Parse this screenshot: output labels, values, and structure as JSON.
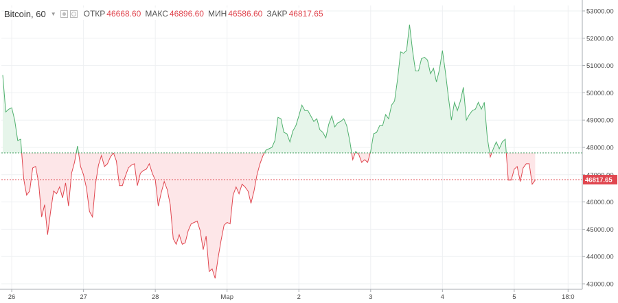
{
  "legend": {
    "symbol": "Bitcoin, 60",
    "open_label": "ОТКР",
    "open_value": "46668.60",
    "high_label": "МАКС",
    "high_value": "46896.60",
    "low_label": "МИН",
    "low_value": "46586.60",
    "close_label": "ЗАКР",
    "close_value": "46817.65"
  },
  "colors": {
    "up_line": "#4fb06d",
    "up_fill": "#e6f5ea",
    "down_line": "#e0464f",
    "down_fill": "#fde6e8",
    "baseline": "#3a9a5a",
    "last_price": "#e0464f"
  },
  "icons": [
    "caret-down-icon",
    "eye-icon",
    "gear-icon"
  ],
  "last_price_tag": "46817.65",
  "chart_data": {
    "type": "area",
    "title": "",
    "baseline_value": 47800,
    "last_value": 46817.65,
    "ylim": [
      42800,
      53200
    ],
    "y_ticks": [
      43000,
      44000,
      45000,
      46000,
      47000,
      48000,
      49000,
      50000,
      51000,
      52000,
      53000
    ],
    "y_tick_labels": [
      "43000.00",
      "44000.00",
      "45000.00",
      "46000.00",
      "47000.00",
      "48000.00",
      "49000.00",
      "50000.00",
      "51000.00",
      "52000.00",
      "53000.00"
    ],
    "x_ticks": [
      {
        "label": "26",
        "index": 3
      },
      {
        "label": "27",
        "index": 27
      },
      {
        "label": "28",
        "index": 51
      },
      {
        "label": "Мар",
        "index": 75
      },
      {
        "label": "2",
        "index": 99
      },
      {
        "label": "3",
        "index": 123
      },
      {
        "label": "4",
        "index": 147
      },
      {
        "label": "5",
        "index": 171
      },
      {
        "label": "18:0",
        "index": 189
      }
    ],
    "x_range": [
      0,
      191
    ],
    "series": [
      {
        "values": [
          50650,
          49300,
          49400,
          49450,
          49000,
          48250,
          48300,
          46850,
          46250,
          46400,
          47250,
          47300,
          46700,
          45450,
          45900,
          44800,
          45650,
          46400,
          46300,
          46550,
          46150,
          46700,
          45850,
          47050,
          47450,
          48050,
          47300,
          47000,
          46500,
          45650,
          45450,
          46650,
          47350,
          47700,
          47300,
          47400,
          47650,
          47800,
          47500,
          46600,
          46600,
          46950,
          47250,
          47350,
          47400,
          46600,
          47050,
          47150,
          47200,
          47400,
          47050,
          46800,
          45850,
          46350,
          46750,
          46450,
          45900,
          44650,
          44450,
          44800,
          44450,
          44500,
          44950,
          45200,
          45250,
          45300,
          44950,
          44250,
          44750,
          43450,
          43550,
          43200,
          43950,
          44600,
          45150,
          45250,
          45200,
          46250,
          46550,
          46300,
          46650,
          46550,
          46400,
          45950,
          46400,
          47000,
          47400,
          47700,
          47900,
          47950,
          48000,
          48250,
          49100,
          49050,
          48550,
          48500,
          48200,
          48600,
          48800,
          49150,
          49550,
          49350,
          49350,
          49150,
          48950,
          49050,
          48650,
          48550,
          48350,
          48850,
          49150,
          48750,
          48900,
          48950,
          49050,
          48800,
          48250,
          47550,
          47850,
          47750,
          47450,
          47550,
          47450,
          47850,
          48500,
          48550,
          48800,
          48800,
          49200,
          49050,
          49550,
          49700,
          50500,
          51500,
          51450,
          51550,
          52500,
          51550,
          50800,
          50800,
          51250,
          51300,
          51200,
          50700,
          50900,
          50400,
          50850,
          51550,
          50750,
          49850,
          49000,
          49650,
          49350,
          49700,
          50200,
          49000,
          49200,
          49350,
          49400,
          49650,
          49400,
          49650,
          48350,
          47650,
          47950,
          48200,
          47950,
          48200,
          48300,
          46800,
          46800,
          47200,
          47300,
          46750,
          47250,
          47400,
          47400,
          46650,
          46800
        ]
      }
    ]
  }
}
